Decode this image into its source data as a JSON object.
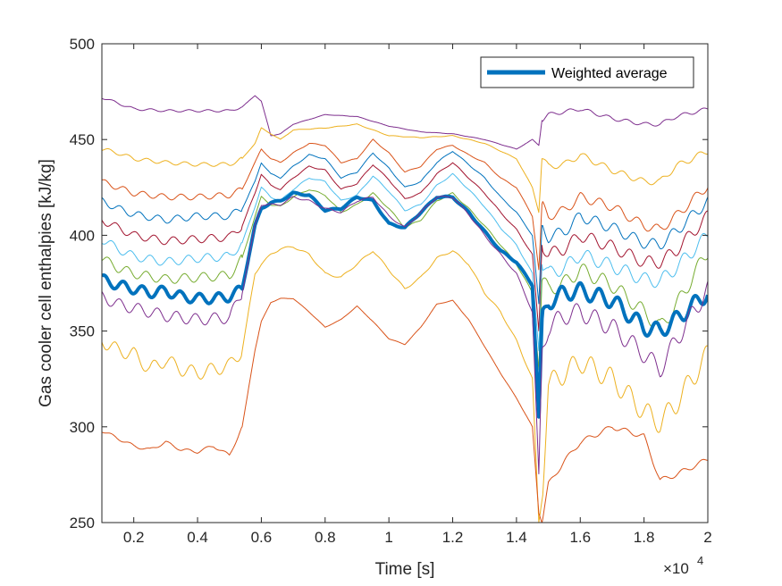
{
  "chart_data": {
    "type": "line",
    "xlabel": "Time [s]",
    "ylabel": "Gas cooler cell enthalpies [kJ/kg]",
    "x_exponent_label": "×10",
    "x_exponent_power": "4",
    "xlim": [
      1000,
      20000
    ],
    "ylim": [
      250,
      500
    ],
    "x_ticks": [
      2000,
      4000,
      6000,
      8000,
      10000,
      12000,
      14000,
      16000,
      18000,
      20000
    ],
    "x_tick_labels": [
      "0.2",
      "0.4",
      "0.6",
      "0.8",
      "1",
      "1.2",
      "1.4",
      "1.6",
      "1.8",
      "2"
    ],
    "y_ticks": [
      250,
      300,
      350,
      400,
      450,
      500
    ],
    "y_tick_labels": [
      "250",
      "300",
      "350",
      "400",
      "450",
      "500"
    ],
    "grid": false,
    "legend": {
      "position": "top-right",
      "entries": [
        "Weighted average"
      ]
    },
    "series": [
      {
        "color": "#7E2F8E",
        "osc": 0.6,
        "width": 1,
        "x": [
          1000,
          1500,
          2000,
          3000,
          4000,
          5000,
          5400,
          5800,
          6000,
          6300,
          6600,
          7000,
          8000,
          9000,
          10000,
          11000,
          12000,
          13000,
          14000,
          14500,
          14700,
          14800,
          15000,
          16000,
          17000,
          18000,
          18500,
          19000,
          20000
        ],
        "y": [
          472,
          469,
          466,
          465,
          465,
          465,
          467,
          473,
          470,
          452,
          453,
          458,
          463,
          462,
          457,
          454,
          453,
          450,
          445,
          450,
          447,
          460,
          463,
          466,
          461,
          458,
          458,
          462,
          466
        ]
      },
      {
        "color": "#EDB120",
        "osc": 1.0,
        "width": 1,
        "x": [
          1000,
          1500,
          2000,
          3000,
          4000,
          5000,
          5400,
          5800,
          6000,
          6300,
          6600,
          7000,
          8000,
          9000,
          10000,
          11000,
          12000,
          13000,
          14000,
          14500,
          14700,
          14800,
          15000,
          15500,
          16000,
          17000,
          18000,
          18500,
          19000,
          20000
        ],
        "y": [
          445,
          443,
          440,
          438,
          437,
          437,
          440,
          448,
          456,
          453,
          450,
          455,
          456,
          458,
          452,
          451,
          452,
          448,
          440,
          425,
          412,
          440,
          436,
          437,
          442,
          434,
          428,
          428,
          436,
          444
        ]
      },
      {
        "color": "#D95319",
        "osc": 1.5,
        "width": 1,
        "x": [
          1000,
          1500,
          2000,
          3000,
          4000,
          5000,
          5400,
          5800,
          6000,
          6300,
          6600,
          7000,
          7500,
          8000,
          8500,
          9000,
          9500,
          10000,
          10500,
          11000,
          11500,
          12000,
          12500,
          13000,
          13500,
          14000,
          14500,
          14700,
          14800,
          15000,
          15500,
          16000,
          17000,
          18000,
          18500,
          19000,
          20000
        ],
        "y": [
          428,
          425,
          422,
          420,
          420,
          421,
          424,
          438,
          445,
          440,
          438,
          443,
          448,
          447,
          438,
          440,
          450,
          443,
          433,
          436,
          445,
          447,
          442,
          438,
          430,
          425,
          410,
          382,
          416,
          410,
          413,
          420,
          415,
          405,
          403,
          410,
          426
        ]
      },
      {
        "color": "#0072BD",
        "osc": 1.8,
        "width": 1,
        "x": [
          1000,
          1500,
          2000,
          3000,
          4000,
          5000,
          5400,
          5800,
          6000,
          6300,
          6600,
          7000,
          7500,
          8000,
          8500,
          9000,
          9500,
          10000,
          10500,
          11000,
          11500,
          12000,
          12500,
          13000,
          13500,
          14000,
          14500,
          14700,
          14800,
          15000,
          15500,
          16000,
          17000,
          18000,
          18500,
          19000,
          20000
        ],
        "y": [
          418,
          414,
          411,
          408,
          410,
          410,
          414,
          428,
          438,
          432,
          430,
          436,
          442,
          440,
          430,
          433,
          443,
          435,
          425,
          428,
          438,
          444,
          437,
          430,
          420,
          412,
          400,
          364,
          405,
          399,
          402,
          410,
          404,
          396,
          395,
          402,
          418
        ]
      },
      {
        "color": "#A2142F",
        "osc": 2.0,
        "width": 1,
        "x": [
          1000,
          1500,
          2000,
          3000,
          4000,
          5000,
          5400,
          5800,
          6000,
          6300,
          6600,
          7000,
          7500,
          8000,
          8500,
          9000,
          9500,
          10000,
          10500,
          11000,
          11500,
          12000,
          12500,
          13000,
          13500,
          14000,
          14500,
          14700,
          14800,
          15000,
          15500,
          16000,
          17000,
          18000,
          18500,
          19000,
          20000
        ],
        "y": [
          408,
          404,
          400,
          397,
          398,
          399,
          405,
          422,
          432,
          426,
          424,
          430,
          436,
          434,
          424,
          427,
          437,
          429,
          419,
          422,
          432,
          438,
          430,
          422,
          412,
          403,
          390,
          350,
          395,
          390,
          393,
          400,
          394,
          386,
          386,
          392,
          410
        ]
      },
      {
        "color": "#4DBEEE",
        "osc": 2.2,
        "width": 1,
        "x": [
          1000,
          1500,
          2000,
          3000,
          4000,
          5000,
          5400,
          5800,
          6000,
          6300,
          6600,
          7000,
          7500,
          8000,
          8500,
          9000,
          9500,
          10000,
          10500,
          11000,
          11500,
          12000,
          12500,
          13000,
          13500,
          14000,
          14500,
          14700,
          14800,
          15000,
          15500,
          16000,
          17000,
          18000,
          18500,
          19000,
          20000
        ],
        "y": [
          398,
          393,
          389,
          386,
          388,
          389,
          396,
          415,
          425,
          420,
          418,
          424,
          430,
          428,
          418,
          421,
          431,
          423,
          413,
          416,
          426,
          432,
          424,
          415,
          404,
          395,
          380,
          340,
          385,
          380,
          383,
          390,
          384,
          377,
          376,
          383,
          400
        ]
      },
      {
        "color": "#77AC30",
        "osc": 2.4,
        "width": 1,
        "x": [
          1000,
          1500,
          2000,
          3000,
          4000,
          5000,
          5400,
          5800,
          6000,
          6300,
          6600,
          7000,
          7500,
          8000,
          8500,
          9000,
          9500,
          10000,
          10500,
          11000,
          11500,
          12000,
          12500,
          13000,
          13500,
          14000,
          14500,
          14700,
          14800,
          15000,
          15500,
          16000,
          17000,
          18000,
          18500,
          19000,
          20000
        ],
        "y": [
          388,
          383,
          380,
          377,
          378,
          379,
          388,
          410,
          420,
          416,
          415,
          420,
          424,
          421,
          412,
          416,
          422,
          414,
          404,
          408,
          418,
          422,
          414,
          405,
          395,
          385,
          370,
          330,
          376,
          372,
          375,
          382,
          374,
          360,
          352,
          363,
          392
        ]
      },
      {
        "color": "#0072BD",
        "osc": 2.6,
        "width": 4,
        "x": [
          1000,
          1500,
          2000,
          2500,
          3000,
          3500,
          4000,
          4500,
          5000,
          5400,
          5800,
          6000,
          6300,
          6600,
          7000,
          7500,
          8000,
          8500,
          9000,
          9500,
          10000,
          10500,
          11000,
          11500,
          12000,
          12500,
          13000,
          13500,
          14000,
          14500,
          14700,
          14800,
          15000,
          15500,
          16000,
          17000,
          18000,
          18500,
          19000,
          20000
        ],
        "y": [
          377,
          374,
          372,
          370,
          371,
          368,
          367,
          367,
          368,
          372,
          405,
          414,
          417,
          418,
          422,
          421,
          413,
          414,
          420,
          418,
          406,
          404,
          412,
          420,
          420,
          412,
          402,
          392,
          386,
          374,
          305,
          356,
          365,
          370,
          371,
          366,
          352,
          350,
          356,
          370
        ]
      },
      {
        "color": "#7E2F8E",
        "osc": 3.0,
        "width": 1,
        "x": [
          1000,
          1500,
          2000,
          3000,
          4000,
          5000,
          5400,
          5800,
          6000,
          6300,
          6600,
          7000,
          7500,
          8000,
          8500,
          9000,
          9500,
          10000,
          10500,
          11000,
          11500,
          12000,
          12500,
          13000,
          13500,
          14000,
          14500,
          14700,
          14800,
          15000,
          15500,
          16000,
          17000,
          18000,
          18500,
          19000,
          20000
        ],
        "y": [
          368,
          364,
          362,
          358,
          356,
          357,
          370,
          405,
          416,
          416,
          416,
          420,
          418,
          414,
          412,
          418,
          420,
          410,
          404,
          412,
          420,
          420,
          411,
          400,
          390,
          380,
          360,
          275,
          340,
          352,
          358,
          360,
          352,
          338,
          330,
          345,
          372
        ]
      },
      {
        "color": "#EDB120",
        "osc": 3.5,
        "width": 1,
        "x": [
          1000,
          1500,
          2000,
          2500,
          3000,
          3500,
          4000,
          4500,
          5000,
          5400,
          5800,
          6000,
          6300,
          6600,
          7000,
          7500,
          8000,
          8500,
          9000,
          9500,
          10000,
          10500,
          11000,
          11500,
          12000,
          12500,
          13000,
          13500,
          14000,
          14500,
          14700,
          14800,
          15000,
          15500,
          16000,
          17000,
          18000,
          18500,
          19000,
          20000
        ],
        "y": [
          345,
          340,
          338,
          330,
          335,
          330,
          328,
          330,
          332,
          340,
          380,
          385,
          390,
          393,
          394,
          390,
          380,
          378,
          385,
          392,
          382,
          372,
          378,
          388,
          392,
          385,
          370,
          360,
          345,
          325,
          250,
          262,
          322,
          328,
          334,
          325,
          308,
          302,
          312,
          338
        ]
      },
      {
        "color": "#D95319",
        "osc": 0.8,
        "width": 1,
        "x": [
          1000,
          1500,
          2000,
          2500,
          3000,
          3500,
          4000,
          4500,
          5000,
          5400,
          5800,
          6000,
          6300,
          6600,
          7000,
          7500,
          8000,
          8500,
          9000,
          9500,
          10000,
          10500,
          11000,
          11500,
          12000,
          12500,
          13000,
          13500,
          14000,
          14500,
          14700,
          14800,
          15000,
          15500,
          16000,
          17000,
          18000,
          18500,
          19000,
          20000
        ],
        "y": [
          298,
          294,
          290,
          288,
          292,
          288,
          287,
          290,
          285,
          300,
          340,
          355,
          365,
          367,
          367,
          360,
          352,
          356,
          363,
          355,
          346,
          343,
          352,
          364,
          366,
          356,
          342,
          328,
          315,
          300,
          255,
          250,
          270,
          282,
          292,
          300,
          295,
          272,
          275,
          283
        ]
      }
    ]
  }
}
